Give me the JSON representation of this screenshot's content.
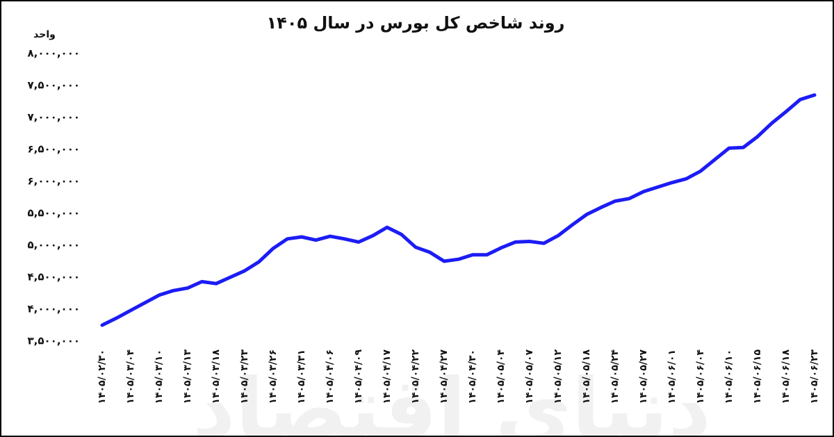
{
  "chart_data": {
    "type": "line",
    "title": "روند شاخص کل بورس در سال ۱۴۰۵",
    "y_label": "واحد",
    "watermark": "دنیای اقتصاد",
    "categories": [
      "۱۴۰۵/۰۲/۳۰",
      null,
      "۱۴۰۵/۰۳/۰۴",
      null,
      "۱۴۰۵/۰۳/۱۰",
      null,
      "۱۴۰۵/۰۳/۱۳",
      null,
      "۱۴۰۵/۰۳/۱۸",
      null,
      "۱۴۰۵/۰۳/۲۳",
      null,
      "۱۴۰۵/۰۳/۲۶",
      null,
      "۱۴۰۵/۰۳/۳۱",
      null,
      "۱۴۰۵/۰۴/۰۶",
      null,
      "۱۴۰۵/۰۴/۰۹",
      null,
      "۱۴۰۵/۰۴/۱۷",
      null,
      "۱۴۰۵/۰۴/۲۲",
      null,
      "۱۴۰۵/۰۴/۲۷",
      null,
      "۱۴۰۵/۰۴/۳۰",
      null,
      "۱۴۰۵/۰۵/۰۴",
      null,
      "۱۴۰۵/۰۵/۰۷",
      null,
      "۱۴۰۵/۰۵/۱۲",
      null,
      "۱۴۰۵/۰۵/۱۸",
      null,
      "۱۴۰۵/۰۵/۲۴",
      null,
      "۱۴۰۵/۰۵/۲۷",
      null,
      "۱۴۰۵/۰۶/۰۱",
      null,
      "۱۴۰۵/۰۶/۰۴",
      null,
      "۱۴۰۵/۰۶/۱۰",
      null,
      "۱۴۰۵/۰۶/۱۵",
      null,
      "۱۴۰۵/۰۶/۱۸",
      null,
      "۱۴۰۵/۰۶/۲۳"
    ],
    "values": [
      3750000,
      3860000,
      3980000,
      4100000,
      4220000,
      4290000,
      4330000,
      4430000,
      4400000,
      4500000,
      4600000,
      4740000,
      4950000,
      5100000,
      5130000,
      5080000,
      5140000,
      5100000,
      5050000,
      5150000,
      5280000,
      5170000,
      4970000,
      4890000,
      4750000,
      4780000,
      4850000,
      4850000,
      4960000,
      5050000,
      5060000,
      5030000,
      5150000,
      5320000,
      5480000,
      5590000,
      5690000,
      5730000,
      5840000,
      5910000,
      5980000,
      6040000,
      6160000,
      6340000,
      6520000,
      6530000,
      6700000,
      6910000,
      7090000,
      7280000,
      7350000
    ],
    "color": "#1c1cf5",
    "ylim": [
      3500000,
      8000000
    ],
    "yticks": [
      {
        "value": 3500000,
        "label": "۳,۵۰۰,۰۰۰"
      },
      {
        "value": 4000000,
        "label": "۴,۰۰۰,۰۰۰"
      },
      {
        "value": 4500000,
        "label": "۴,۵۰۰,۰۰۰"
      },
      {
        "value": 5000000,
        "label": "۵,۰۰۰,۰۰۰"
      },
      {
        "value": 5500000,
        "label": "۵,۵۰۰,۰۰۰"
      },
      {
        "value": 6000000,
        "label": "۶,۰۰۰,۰۰۰"
      },
      {
        "value": 6500000,
        "label": "۶,۵۰۰,۰۰۰"
      },
      {
        "value": 7000000,
        "label": "۷,۰۰۰,۰۰۰"
      },
      {
        "value": 7500000,
        "label": "۷,۵۰۰,۰۰۰"
      },
      {
        "value": 8000000,
        "label": "۸,۰۰۰,۰۰۰"
      }
    ],
    "grid": false
  }
}
